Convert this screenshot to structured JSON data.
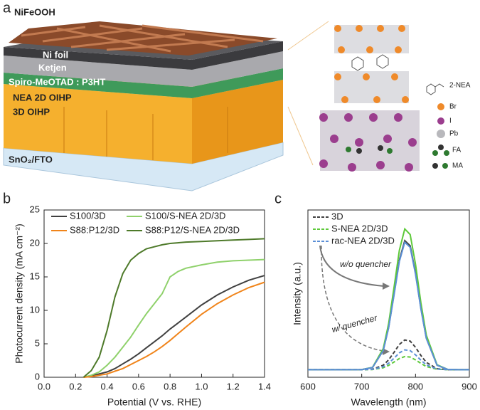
{
  "panel_a": {
    "label": "a",
    "layers": [
      "NiFeOOH",
      "Ni foil",
      "Ketjen",
      "Spiro-MeOTAD : P3HT",
      "NEA 2D OIHP",
      "3D OIHP",
      "SnO₂/FTO"
    ],
    "legend": [
      "2-NEA",
      "Br",
      "I",
      "Pb",
      "FA",
      "MA"
    ]
  },
  "chart_data": [
    {
      "type": "line",
      "panel_label": "b",
      "xlabel": "Potential (V vs. RHE)",
      "ylabel": "Photocurrent density (mA cm⁻²)",
      "x": [
        0.25,
        0.3,
        0.35,
        0.4,
        0.45,
        0.5,
        0.55,
        0.6,
        0.65,
        0.7,
        0.75,
        0.8,
        0.85,
        0.9,
        1.0,
        1.1,
        1.2,
        1.3,
        1.4
      ],
      "series": [
        {
          "name": "S100/3D",
          "color": "#404040",
          "values": [
            0,
            0.2,
            0.5,
            0.8,
            1.3,
            2,
            2.7,
            3.5,
            4.4,
            5.3,
            6.2,
            7.2,
            8.1,
            9,
            10.8,
            12.3,
            13.5,
            14.5,
            15.2
          ]
        },
        {
          "name": "S100/S-NEA 2D/3D",
          "color": "#8fd16b",
          "values": [
            0,
            0.3,
            0.8,
            1.8,
            3,
            4.5,
            6,
            7.8,
            9.5,
            11,
            12.5,
            15,
            15.8,
            16.3,
            16.8,
            17.2,
            17.4,
            17.5,
            17.6
          ]
        },
        {
          "name": "S88:P12/3D",
          "color": "#f0841a",
          "values": [
            0,
            0.1,
            0.3,
            0.5,
            0.9,
            1.3,
            1.9,
            2.5,
            3.1,
            3.8,
            4.6,
            5.5,
            6.5,
            7.5,
            9.4,
            11,
            12.3,
            13.4,
            14.2
          ]
        },
        {
          "name": "S88:P12/S-NEA 2D/3D",
          "color": "#4e7a2a",
          "values": [
            0,
            1,
            3,
            7,
            12,
            15.5,
            17.5,
            18.5,
            19.2,
            19.5,
            19.8,
            20,
            20.1,
            20.2,
            20.3,
            20.4,
            20.5,
            20.6,
            20.7
          ]
        }
      ],
      "xlim": [
        0,
        1.4
      ],
      "xticks": [
        {
          "value": 0,
          "label": "0.0"
        },
        0.2,
        0.4,
        0.6,
        0.8,
        {
          "value": 1,
          "label": "1.0"
        },
        1.2,
        1.4
      ],
      "ylim": [
        0,
        25
      ],
      "yticks": [
        0,
        5,
        10,
        15,
        20,
        25
      ]
    },
    {
      "type": "line",
      "panel_label": "c",
      "xlabel": "Wavelength (nm)",
      "ylabel": "Intensity (a.u.)",
      "annotations": [
        "w/o quencher",
        "w/ quencher"
      ],
      "x": [
        600,
        650,
        700,
        720,
        740,
        750,
        760,
        770,
        780,
        790,
        800,
        810,
        820,
        840,
        860,
        880,
        900
      ],
      "series": [
        {
          "name": "3D",
          "color": "#404040",
          "values": [
            0.045,
            0.045,
            0.046,
            0.058,
            0.16,
            0.298,
            0.497,
            0.7,
            0.817,
            0.786,
            0.624,
            0.412,
            0.235,
            0.072,
            0.047,
            0.045,
            0.045
          ],
          "values_quenched": [
            0.045,
            0.045,
            0.045,
            0.048,
            0.072,
            0.104,
            0.149,
            0.196,
            0.223,
            0.216,
            0.179,
            0.13,
            0.089,
            0.051,
            0.045,
            0.045,
            0.045
          ]
        },
        {
          "name": "S-NEA 2D/3D",
          "color": "#5ec93a",
          "values": [
            0.045,
            0.045,
            0.046,
            0.059,
            0.171,
            0.321,
            0.537,
            0.759,
            0.887,
            0.853,
            0.676,
            0.445,
            0.252,
            0.075,
            0.047,
            0.045,
            0.045
          ],
          "values_quenched": [
            0.045,
            0.045,
            0.045,
            0.046,
            0.057,
            0.071,
            0.091,
            0.112,
            0.124,
            0.121,
            0.104,
            0.083,
            0.064,
            0.048,
            0.045,
            0.045,
            0.045
          ]
        },
        {
          "name": "rac-NEA 2D/3D",
          "color": "#5b8fd6",
          "values": [
            0.045,
            0.045,
            0.046,
            0.058,
            0.159,
            0.295,
            0.491,
            0.692,
            0.807,
            0.777,
            0.616,
            0.408,
            0.232,
            0.072,
            0.047,
            0.045,
            0.045
          ],
          "values_quenched": [
            0.045,
            0.045,
            0.045,
            0.047,
            0.063,
            0.084,
            0.114,
            0.146,
            0.164,
            0.159,
            0.134,
            0.102,
            0.074,
            0.049,
            0.045,
            0.045,
            0.045
          ]
        }
      ],
      "xlim": [
        600,
        900
      ],
      "xticks": [
        600,
        700,
        800,
        900
      ],
      "ylim": [
        0,
        1
      ]
    }
  ]
}
